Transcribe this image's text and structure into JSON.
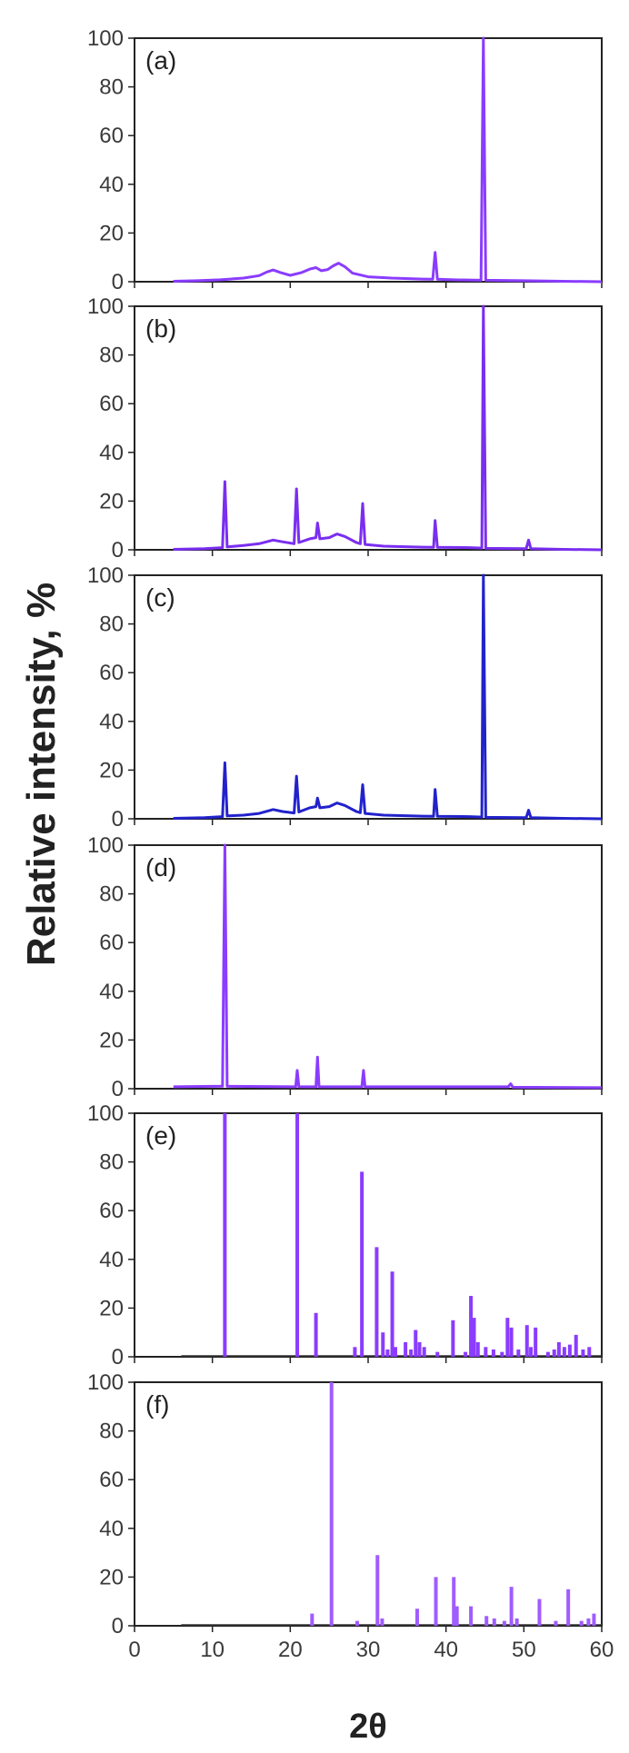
{
  "figure": {
    "y_axis_title": "Relative  intensity, %",
    "x_axis_title": "2θ"
  },
  "chart_data": [
    {
      "panel": "(a)",
      "type": "line",
      "color": "#8a3cff",
      "xlim": [
        0,
        60
      ],
      "ylim": [
        0,
        100
      ],
      "yticks": [
        "0",
        "20",
        "40",
        "60",
        "80",
        "100"
      ],
      "points": [
        [
          5,
          0.2
        ],
        [
          8,
          0.4
        ],
        [
          11,
          0.8
        ],
        [
          14,
          1.5
        ],
        [
          16,
          2.5
        ],
        [
          17,
          4
        ],
        [
          17.8,
          4.8
        ],
        [
          18.7,
          3.8
        ],
        [
          20,
          2.6
        ],
        [
          21.5,
          3.8
        ],
        [
          22.5,
          5.2
        ],
        [
          23.3,
          5.8
        ],
        [
          24,
          4.5
        ],
        [
          24.8,
          5
        ],
        [
          25.5,
          6.5
        ],
        [
          26.2,
          7.6
        ],
        [
          27,
          6.2
        ],
        [
          28,
          3.5
        ],
        [
          30,
          2
        ],
        [
          33,
          1.5
        ],
        [
          37,
          1.1
        ],
        [
          38.3,
          1
        ],
        [
          38.6,
          12
        ],
        [
          38.9,
          1
        ],
        [
          41,
          0.8
        ],
        [
          44.5,
          0.6
        ],
        [
          44.8,
          100
        ],
        [
          45.1,
          0.6
        ],
        [
          50,
          0.4
        ],
        [
          55,
          0.2
        ],
        [
          60,
          0
        ]
      ]
    },
    {
      "panel": "(b)",
      "type": "line",
      "color": "#7a2ef0",
      "xlim": [
        0,
        60
      ],
      "ylim": [
        0,
        100
      ],
      "yticks": [
        "0",
        "20",
        "40",
        "60",
        "80",
        "100"
      ],
      "points": [
        [
          5,
          0.2
        ],
        [
          9,
          0.5
        ],
        [
          11.3,
          0.9
        ],
        [
          11.6,
          28
        ],
        [
          11.9,
          1.2
        ],
        [
          14,
          1.8
        ],
        [
          16,
          2.5
        ],
        [
          17.8,
          4
        ],
        [
          19,
          3.3
        ],
        [
          20.5,
          2.5
        ],
        [
          20.8,
          25
        ],
        [
          21.1,
          3
        ],
        [
          22.5,
          4.5
        ],
        [
          23.3,
          5
        ],
        [
          23.5,
          11
        ],
        [
          23.8,
          4.5
        ],
        [
          25,
          5
        ],
        [
          26,
          6.5
        ],
        [
          27,
          5.5
        ],
        [
          28.5,
          3
        ],
        [
          29,
          2.5
        ],
        [
          29.3,
          19
        ],
        [
          29.6,
          2.2
        ],
        [
          32,
          1.5
        ],
        [
          37,
          1.1
        ],
        [
          38.4,
          1
        ],
        [
          38.6,
          12
        ],
        [
          38.9,
          1
        ],
        [
          43,
          0.9
        ],
        [
          44.6,
          0.7
        ],
        [
          44.8,
          100
        ],
        [
          45.1,
          0.6
        ],
        [
          50.3,
          0.5
        ],
        [
          50.6,
          4
        ],
        [
          50.9,
          0.5
        ],
        [
          55,
          0.2
        ],
        [
          60,
          0
        ]
      ]
    },
    {
      "panel": "(c)",
      "type": "line",
      "color": "#2222cc",
      "xlim": [
        0,
        60
      ],
      "ylim": [
        0,
        100
      ],
      "yticks": [
        "0",
        "20",
        "40",
        "60",
        "80",
        "100"
      ],
      "points": [
        [
          5,
          0.2
        ],
        [
          9,
          0.5
        ],
        [
          11.3,
          0.9
        ],
        [
          11.6,
          23
        ],
        [
          11.9,
          1.2
        ],
        [
          14,
          1.5
        ],
        [
          16,
          2.2
        ],
        [
          17.8,
          3.8
        ],
        [
          19,
          3
        ],
        [
          20.5,
          2.4
        ],
        [
          20.8,
          17.5
        ],
        [
          21.1,
          2.8
        ],
        [
          22.5,
          4.5
        ],
        [
          23.3,
          5
        ],
        [
          23.5,
          8.5
        ],
        [
          23.8,
          4.5
        ],
        [
          25,
          5
        ],
        [
          26,
          6.5
        ],
        [
          27,
          5.5
        ],
        [
          28.5,
          3
        ],
        [
          29,
          2.5
        ],
        [
          29.3,
          14
        ],
        [
          29.6,
          2.2
        ],
        [
          32,
          1.5
        ],
        [
          37,
          1.1
        ],
        [
          38.4,
          1
        ],
        [
          38.6,
          12
        ],
        [
          38.9,
          1
        ],
        [
          43,
          0.9
        ],
        [
          44.6,
          0.7
        ],
        [
          44.8,
          100
        ],
        [
          45.1,
          0.6
        ],
        [
          50.3,
          0.5
        ],
        [
          50.6,
          3.5
        ],
        [
          50.9,
          0.5
        ],
        [
          55,
          0.2
        ],
        [
          60,
          0
        ]
      ]
    },
    {
      "panel": "(d)",
      "type": "line",
      "color": "#8a3cff",
      "xlim": [
        0,
        60
      ],
      "ylim": [
        0,
        100
      ],
      "yticks": [
        "0",
        "20",
        "40",
        "60",
        "80",
        "100"
      ],
      "points": [
        [
          5,
          0.8
        ],
        [
          11.3,
          1
        ],
        [
          11.6,
          100
        ],
        [
          11.9,
          1
        ],
        [
          20.7,
          0.8
        ],
        [
          20.9,
          7.5
        ],
        [
          21.1,
          0.8
        ],
        [
          23.3,
          0.8
        ],
        [
          23.5,
          13
        ],
        [
          23.7,
          0.8
        ],
        [
          29.2,
          0.8
        ],
        [
          29.4,
          7.5
        ],
        [
          29.6,
          0.8
        ],
        [
          48,
          0.8
        ],
        [
          48.3,
          2
        ],
        [
          48.6,
          0.6
        ],
        [
          60,
          0.4
        ]
      ]
    },
    {
      "panel": "(e)",
      "type": "bar",
      "color": "#8a3cff",
      "xlim": [
        0,
        60
      ],
      "ylim": [
        0,
        100
      ],
      "yticks": [
        "0",
        "20",
        "40",
        "60",
        "80",
        "100"
      ],
      "x": [
        11.6,
        20.9,
        23.3,
        28.3,
        29.2,
        31.1,
        31.9,
        32.5,
        33.1,
        33.5,
        34.8,
        35.5,
        36.1,
        36.6,
        37.2,
        38.9,
        40.9,
        42.5,
        43.2,
        43.6,
        44.1,
        45.1,
        46.1,
        47.2,
        47.9,
        48.4,
        49.3,
        50.4,
        50.9,
        51.5,
        53.1,
        53.9,
        54.5,
        55.2,
        55.9,
        56.7,
        57.6,
        58.4
      ],
      "values": [
        100,
        100,
        18,
        4,
        76,
        45,
        10,
        3,
        35,
        4,
        6,
        3,
        11,
        6,
        4,
        2,
        15,
        2,
        25,
        16,
        6,
        4,
        3,
        2,
        16,
        12,
        3,
        13,
        4,
        12,
        2,
        3,
        6,
        4,
        5,
        9,
        3,
        4
      ]
    },
    {
      "panel": "(f)",
      "type": "bar",
      "color": "#a05cff",
      "xlim": [
        0,
        60
      ],
      "ylim": [
        0,
        100
      ],
      "yticks": [
        "0",
        "20",
        "40",
        "60",
        "80",
        "100"
      ],
      "xticks": [
        "0",
        "10",
        "20",
        "30",
        "40",
        "50",
        "60"
      ],
      "x": [
        22.8,
        25.3,
        28.6,
        31.2,
        31.8,
        36.3,
        38.7,
        41.0,
        41.4,
        43.2,
        45.2,
        46.2,
        47.5,
        48.4,
        49.1,
        52.0,
        54.1,
        55.7,
        57.4,
        58.3,
        59.0
      ],
      "values": [
        5,
        100,
        2,
        29,
        3,
        7,
        20,
        20,
        8,
        8,
        4,
        3,
        2,
        16,
        3,
        11,
        2,
        15,
        2,
        3,
        5
      ]
    }
  ]
}
